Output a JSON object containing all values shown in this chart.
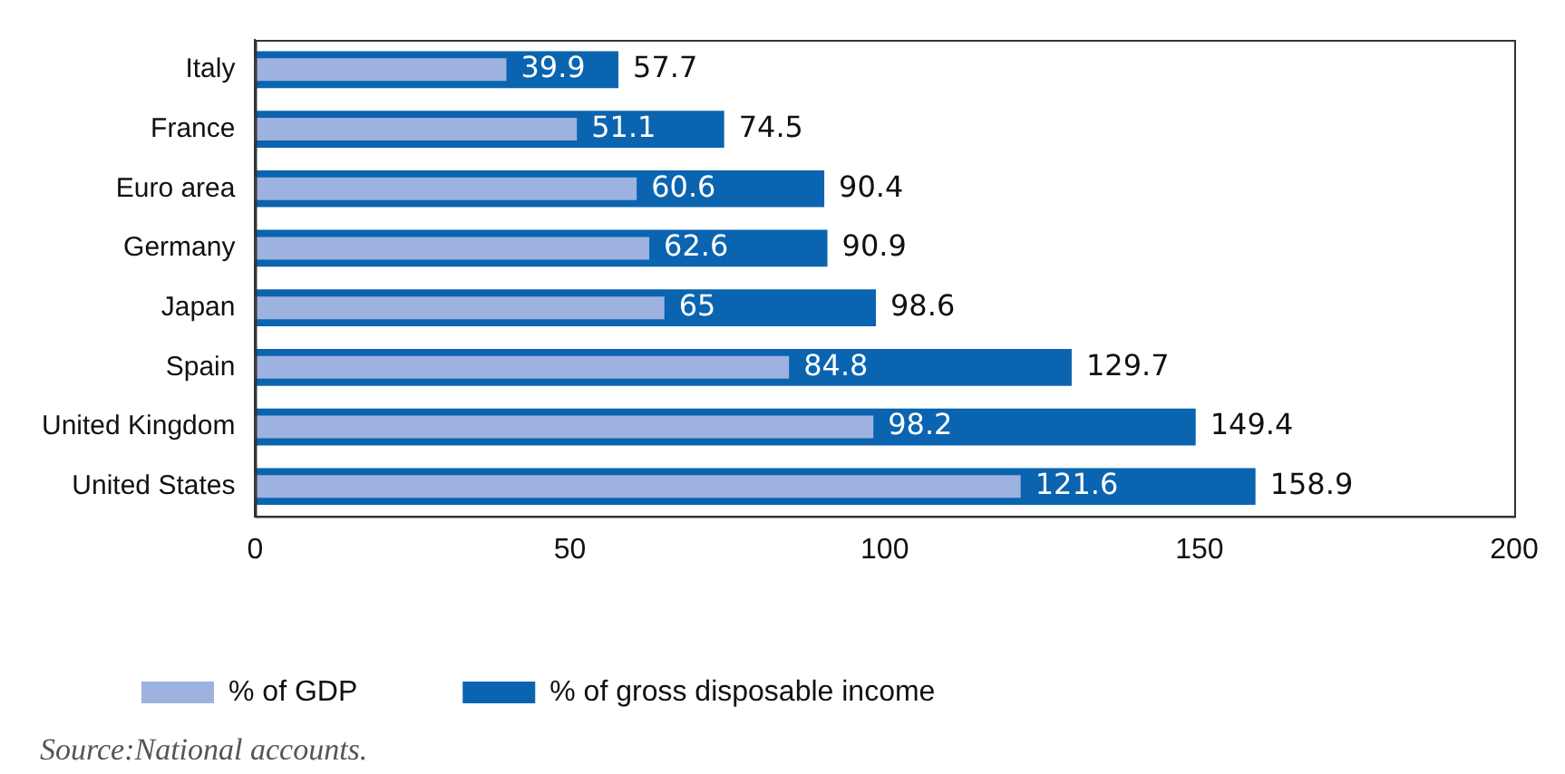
{
  "chart_data": {
    "type": "bar",
    "orientation": "horizontal",
    "categories": [
      "Italy",
      "France",
      "Euro area",
      "Germany",
      "Japan",
      "Spain",
      "United Kingdom",
      "United States"
    ],
    "series": [
      {
        "name": "% of gross disposable income",
        "color": "#0a64b0",
        "values": [
          57.7,
          74.5,
          90.4,
          90.9,
          98.6,
          129.7,
          149.4,
          158.9
        ]
      },
      {
        "name": "% of GDP",
        "color": "#9db2df",
        "values": [
          39.9,
          51.1,
          60.6,
          62.6,
          65,
          84.8,
          98.2,
          121.6
        ]
      }
    ],
    "xlim": [
      0,
      200
    ],
    "xticks": [
      0,
      50,
      100,
      150,
      200
    ],
    "grid": false,
    "legend": "bottom left",
    "data_labels": true,
    "annotations": [
      "Source:National accounts."
    ]
  }
}
